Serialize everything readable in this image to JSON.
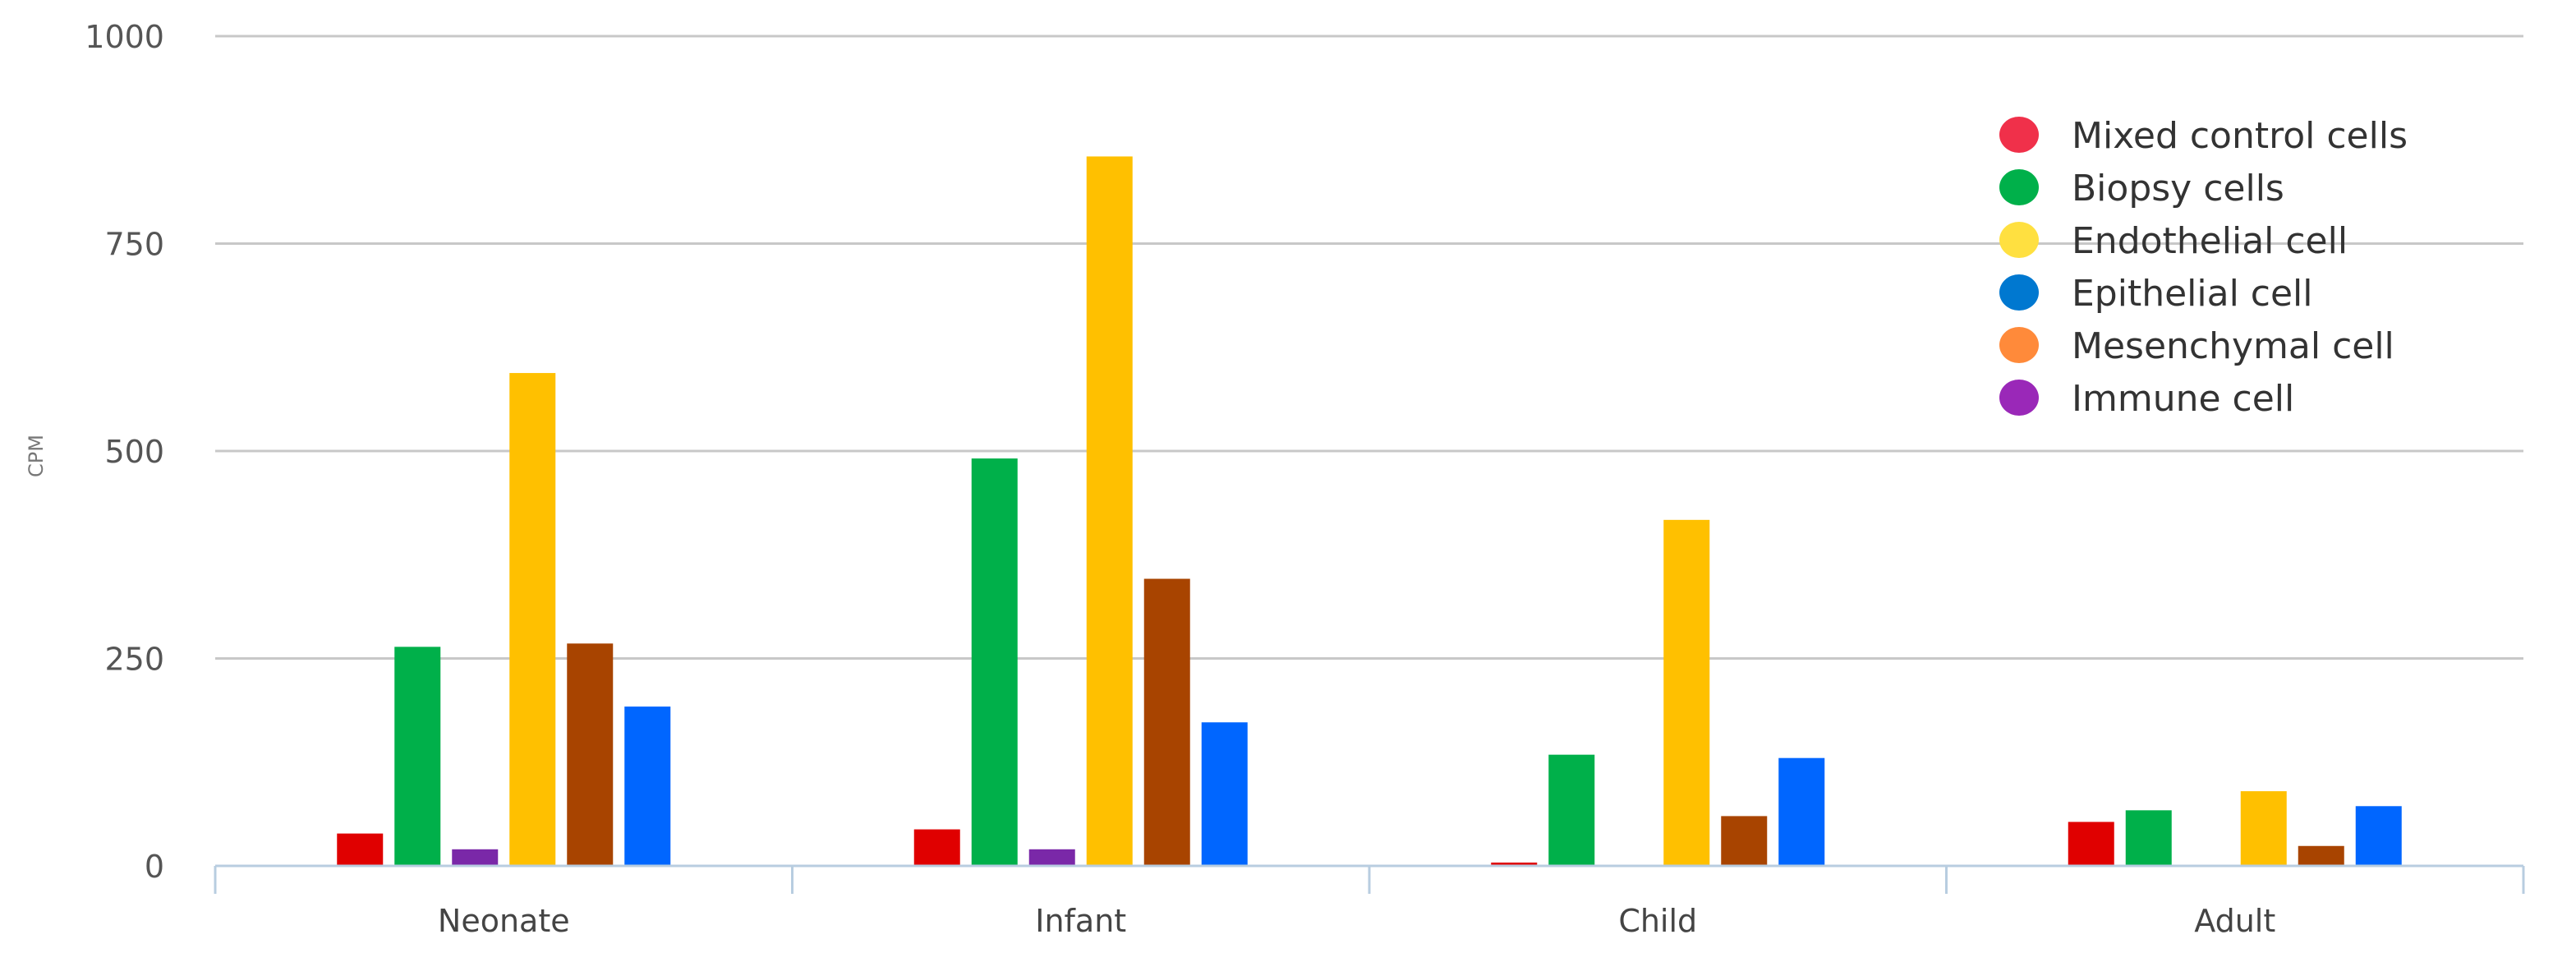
{
  "chart_data": {
    "type": "bar",
    "title": "",
    "xlabel": "",
    "ylabel": "CPM",
    "ylim": [
      0,
      1000
    ],
    "yticks": [
      0,
      250,
      500,
      750,
      1000
    ],
    "grid": true,
    "legend_placement": "top-right",
    "categories": [
      "Neonate",
      "Infant",
      "Child",
      "Adult"
    ],
    "bar_order": [
      "Mixed control cells",
      "Biopsy cells",
      "Immune cell",
      "Endothelial cell",
      "Mesenchymal cell",
      "Epithelial cell"
    ],
    "series": [
      {
        "name": "Mixed control cells",
        "color": "#e00000",
        "legend_color": "#f0304a",
        "values": [
          39,
          44,
          4,
          53
        ]
      },
      {
        "name": "Biopsy cells",
        "color": "#00b04a",
        "legend_color": "#00b04a",
        "values": [
          264,
          491,
          134,
          67
        ]
      },
      {
        "name": "Endothelial cell",
        "color": "#ffc000",
        "legend_color": "#ffe040",
        "values": [
          594,
          855,
          417,
          90
        ]
      },
      {
        "name": "Epithelial cell",
        "color": "#0066ff",
        "legend_color": "#0078d0",
        "values": [
          192,
          173,
          130,
          72
        ]
      },
      {
        "name": "Mesenchymal cell",
        "color": "#a84400",
        "legend_color": "#ff8a3a",
        "values": [
          268,
          346,
          60,
          24
        ]
      },
      {
        "name": "Immune cell",
        "color": "#7a28a8",
        "legend_color": "#9a28b8",
        "values": [
          20,
          20,
          0,
          0
        ]
      }
    ]
  }
}
